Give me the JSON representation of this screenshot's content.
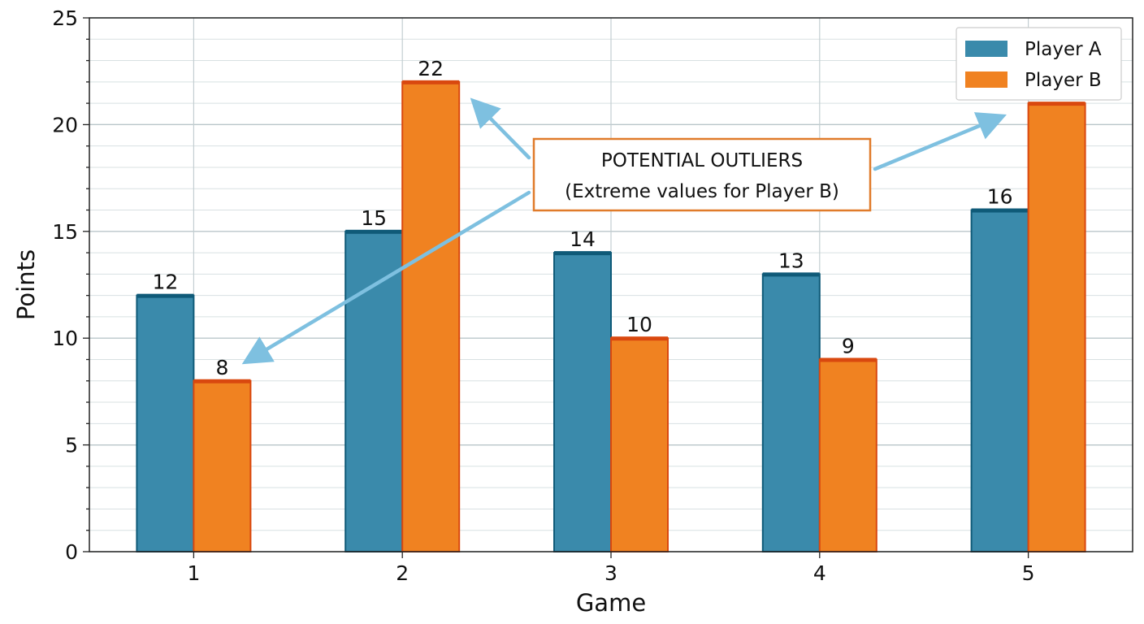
{
  "chart_data": {
    "type": "bar",
    "title": "",
    "xlabel": "Game",
    "ylabel": "Points",
    "categories": [
      "1",
      "2",
      "3",
      "4",
      "5"
    ],
    "series": [
      {
        "name": "Player A",
        "values": [
          12,
          15,
          14,
          13,
          16
        ],
        "color": "#3a8aab",
        "edge_color": "#0f5a78"
      },
      {
        "name": "Player B",
        "values": [
          8,
          22,
          10,
          9,
          21
        ],
        "color": "#f08221",
        "edge_color": "#d9480f"
      }
    ],
    "ylim": [
      0,
      25
    ],
    "yticks": [
      0,
      5,
      10,
      15,
      20,
      25
    ],
    "ytick_labels": [
      "0",
      "5",
      "10",
      "15",
      "20",
      "25"
    ],
    "grid": true,
    "legend_position": "top-right",
    "annotation": {
      "line1": "POTENTIAL OUTLIERS",
      "line2": "(Extreme values for Player B)",
      "border_color": "#e07b2a",
      "arrow_color": "#7ec0e0",
      "targets": [
        {
          "category": "1",
          "series": "Player B"
        },
        {
          "category": "2",
          "series": "Player B"
        },
        {
          "category": "5",
          "series": "Player B"
        }
      ]
    }
  }
}
